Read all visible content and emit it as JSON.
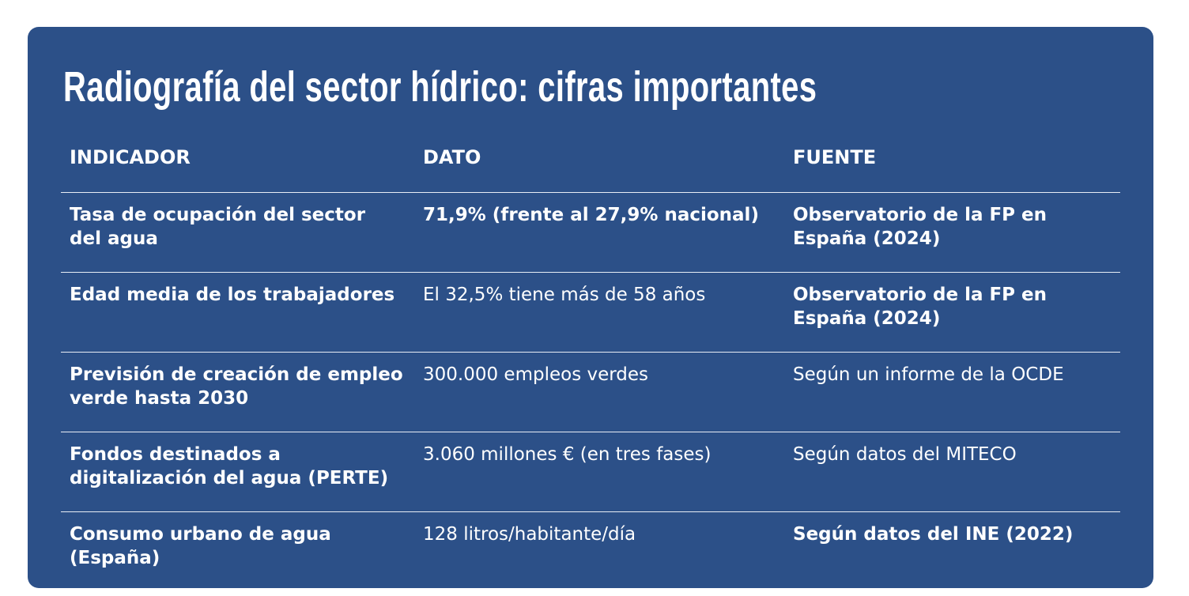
{
  "title": "Radiografía del sector hídrico: cifras importantes",
  "table": {
    "header": [
      "INDICADOR",
      "DATO",
      "FUENTE"
    ],
    "rows": [
      [
        "Tasa de ocupación del sector\ndel agua",
        "71,9% (frente al 27,9% nacional)",
        "Observatorio de la FP en España (2024)"
      ],
      [
        "Edad media de los trabajadores",
        "El 32,5% tiene más de 58 años",
        "Observatorio de la FP en España (2024)"
      ],
      [
        "Previsión de creación de empleo verde hasta 2030",
        "300.000 empleos verdes",
        "Según un informe de la OCDE"
      ],
      [
        "Fondos destinados a digitalización del agua (PERTE)",
        "3.060 millones € (en tres fases)",
        "Según datos del MITECO"
      ],
      [
        "Consumo urbano de agua (España)",
        "128 litros/habitante/día",
        "Según datos del INE (2022)"
      ]
    ]
  }
}
